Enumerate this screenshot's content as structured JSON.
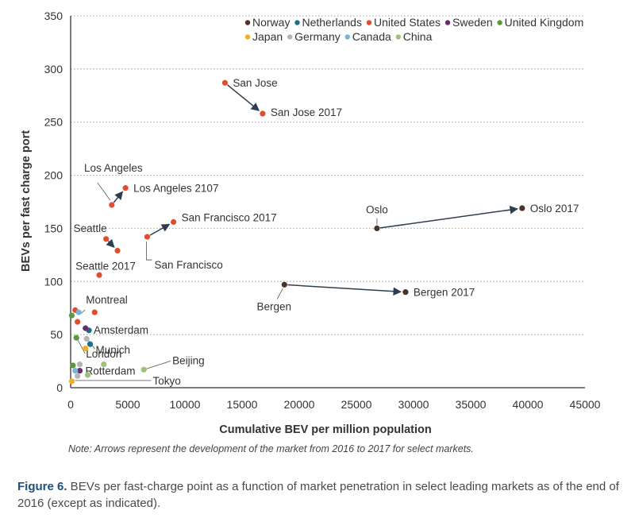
{
  "chart_data": {
    "type": "scatter",
    "xlabel": "Cumulative BEV per million population",
    "ylabel": "BEVs per fast charge port",
    "xlim": [
      0,
      45000
    ],
    "ylim": [
      0,
      350
    ],
    "xticks": [
      0,
      5000,
      10000,
      15000,
      20000,
      25000,
      30000,
      35000,
      40000,
      45000
    ],
    "yticks": [
      0,
      50,
      100,
      150,
      200,
      250,
      300,
      350
    ],
    "grid": "horizontal dotted",
    "legend_position": "top-right",
    "colors": {
      "Norway": "#4a3328",
      "Netherlands": "#1f6f84",
      "United States": "#e04e2f",
      "Sweden": "#6a2a6e",
      "United Kingdom": "#5a9a3c",
      "Japan": "#f0b025",
      "Germany": "#b4b4b4",
      "Canada": "#7ab3d6",
      "China": "#9cc37c"
    },
    "legend": [
      "Norway",
      "Netherlands",
      "United States",
      "Sweden",
      "United Kingdom",
      "Japan",
      "Germany",
      "Canada",
      "China"
    ],
    "points": [
      {
        "series": "United States",
        "x": 13500,
        "y": 287,
        "label": "San Jose"
      },
      {
        "series": "United States",
        "x": 16800,
        "y": 258,
        "label": "San Jose 2017"
      },
      {
        "series": "United States",
        "x": 3600,
        "y": 172,
        "label": "Los Angeles"
      },
      {
        "series": "United States",
        "x": 4800,
        "y": 188,
        "label": "Los Angeles 2107"
      },
      {
        "series": "United States",
        "x": 6700,
        "y": 142,
        "label": "San Francisco"
      },
      {
        "series": "United States",
        "x": 9000,
        "y": 156,
        "label": "San Francisco 2017"
      },
      {
        "series": "United States",
        "x": 3100,
        "y": 140,
        "label": "Seattle"
      },
      {
        "series": "United States",
        "x": 4100,
        "y": 129,
        "label": "Seattle 2017"
      },
      {
        "series": "United States",
        "x": 2500,
        "y": 106,
        "label": ""
      },
      {
        "series": "United States",
        "x": 400,
        "y": 73,
        "label": ""
      },
      {
        "series": "United States",
        "x": 2100,
        "y": 71,
        "label": "Montreal"
      },
      {
        "series": "United States",
        "x": 600,
        "y": 62,
        "label": ""
      },
      {
        "series": "Norway",
        "x": 26800,
        "y": 150,
        "label": "Oslo"
      },
      {
        "series": "Norway",
        "x": 39500,
        "y": 169,
        "label": "Oslo 2017"
      },
      {
        "series": "Norway",
        "x": 18700,
        "y": 97,
        "label": "Bergen"
      },
      {
        "series": "Norway",
        "x": 29300,
        "y": 90,
        "label": "Bergen 2017"
      },
      {
        "series": "Netherlands",
        "x": 1600,
        "y": 54,
        "label": "Amsterdam"
      },
      {
        "series": "Netherlands",
        "x": 1700,
        "y": 41,
        "label": "Munich"
      },
      {
        "series": "Sweden",
        "x": 1300,
        "y": 56,
        "label": ""
      },
      {
        "series": "Sweden",
        "x": 800,
        "y": 16,
        "label": "Rotterdam"
      },
      {
        "series": "United Kingdom",
        "x": 100,
        "y": 68,
        "label": ""
      },
      {
        "series": "United Kingdom",
        "x": 500,
        "y": 47,
        "label": "London"
      },
      {
        "series": "United Kingdom",
        "x": 200,
        "y": 21,
        "label": ""
      },
      {
        "series": "Japan",
        "x": 1300,
        "y": 37,
        "label": ""
      },
      {
        "series": "Japan",
        "x": 100,
        "y": 6,
        "label": "Tokyo"
      },
      {
        "series": "Germany",
        "x": 1400,
        "y": 46,
        "label": ""
      },
      {
        "series": "Germany",
        "x": 800,
        "y": 22,
        "label": ""
      },
      {
        "series": "Germany",
        "x": 600,
        "y": 11,
        "label": ""
      },
      {
        "series": "Canada",
        "x": 700,
        "y": 71,
        "label": ""
      },
      {
        "series": "Canada",
        "x": 400,
        "y": 16,
        "label": ""
      },
      {
        "series": "China",
        "x": 6400,
        "y": 17,
        "label": "Beijing"
      },
      {
        "series": "China",
        "x": 2900,
        "y": 22,
        "label": ""
      },
      {
        "series": "China",
        "x": 1500,
        "y": 12,
        "label": ""
      }
    ],
    "arrows": [
      {
        "from": [
          13500,
          287
        ],
        "to": [
          16800,
          258
        ]
      },
      {
        "from": [
          3600,
          172
        ],
        "to": [
          4800,
          188
        ]
      },
      {
        "from": [
          6700,
          142
        ],
        "to": [
          9000,
          156
        ]
      },
      {
        "from": [
          3100,
          140
        ],
        "to": [
          4100,
          129
        ]
      },
      {
        "from": [
          26800,
          150
        ],
        "to": [
          39500,
          169
        ]
      },
      {
        "from": [
          18700,
          97
        ],
        "to": [
          29300,
          90
        ]
      }
    ]
  },
  "note": "Note: Arrows represent the development of the market from 2016 to 2017 for select markets.",
  "caption": {
    "label": "Figure 6.",
    "text": " BEVs per fast-charge point as a function of market penetration in select leading markets as of the end of 2016 (except as indicated)."
  }
}
